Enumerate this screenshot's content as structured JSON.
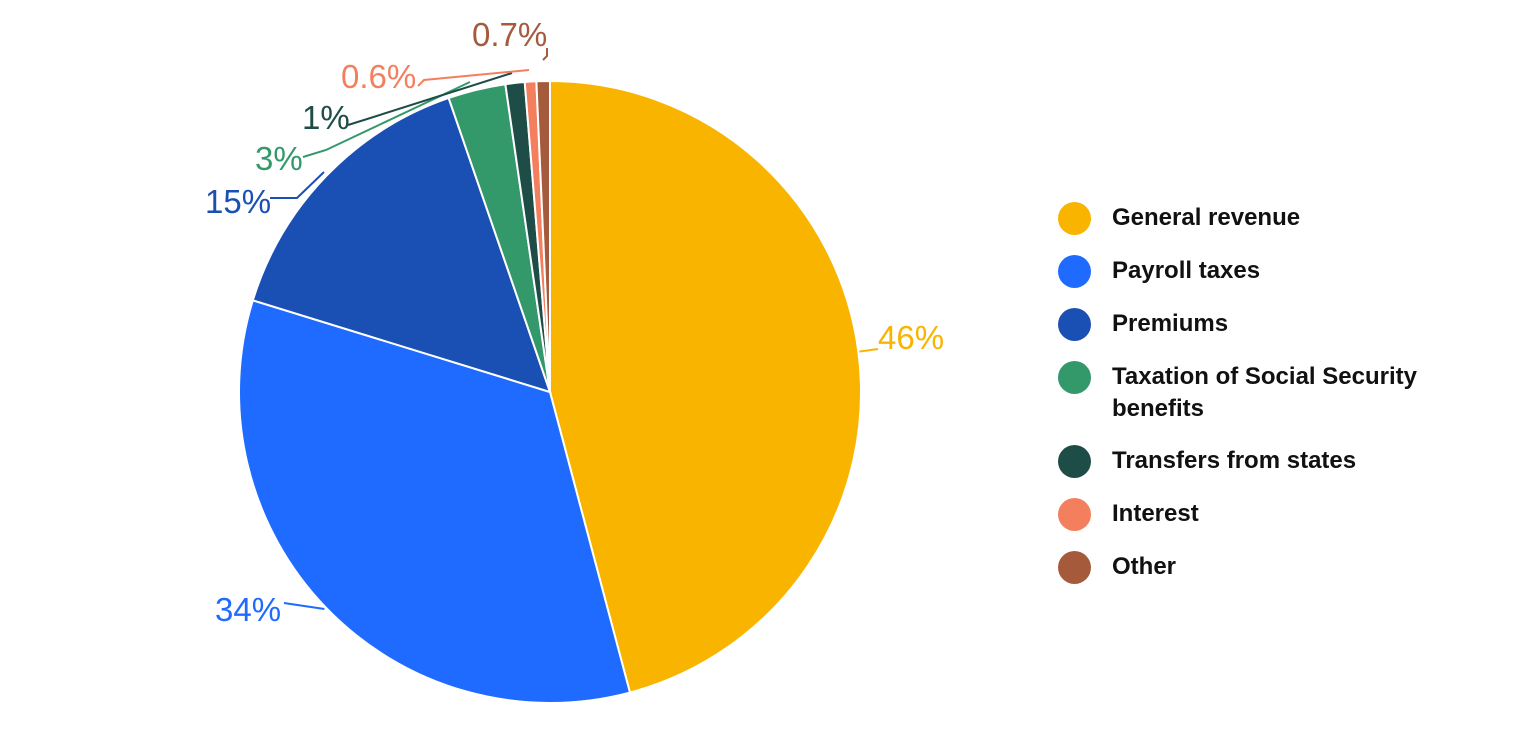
{
  "chart_data": {
    "type": "pie",
    "title": "",
    "slices": [
      {
        "name": "General revenue",
        "value": 46,
        "label": "46%",
        "color": "#F9B400"
      },
      {
        "name": "Payroll taxes",
        "value": 34,
        "label": "34%",
        "color": "#1F6BFF"
      },
      {
        "name": "Premiums",
        "value": 15,
        "label": "15%",
        "color": "#1A4FB3"
      },
      {
        "name": "Taxation of Social Security benefits",
        "value": 3,
        "label": "3%",
        "color": "#34996A"
      },
      {
        "name": "Transfers from states",
        "value": 1,
        "label": "1%",
        "color": "#1E4D48"
      },
      {
        "name": "Interest",
        "value": 0.6,
        "label": "0.6%",
        "color": "#F47F5E"
      },
      {
        "name": "Other",
        "value": 0.7,
        "label": "0.7%",
        "color": "#A65A3C"
      }
    ],
    "legend_position": "right",
    "start_angle": "top",
    "direction": "clockwise"
  }
}
